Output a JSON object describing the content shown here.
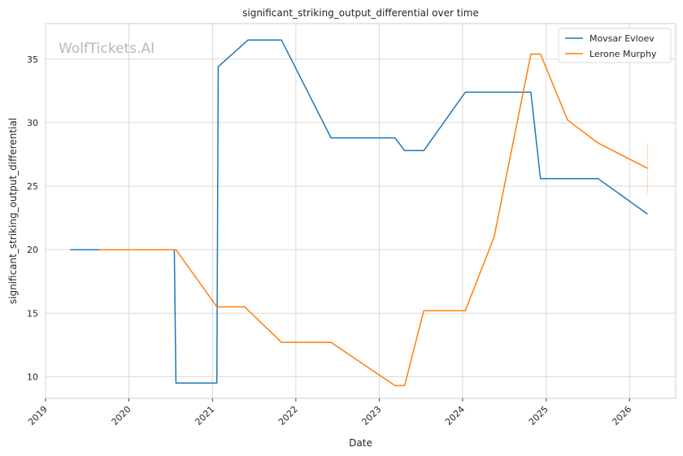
{
  "chart_data": {
    "type": "line",
    "title": "significant_striking_output_differential over time",
    "xlabel": "Date",
    "ylabel": "significant_striking_output_differential",
    "watermark": "WolfTickets.AI",
    "x_tick_labels": [
      "2019",
      "2020",
      "2021",
      "2022",
      "2023",
      "2024",
      "2025",
      "2026"
    ],
    "y_ticks": [
      10,
      15,
      20,
      25,
      30,
      35
    ],
    "xlim": [
      "2019-01-01",
      "2026-07-22"
    ],
    "ylim": [
      8.3,
      37.8
    ],
    "grid": true,
    "legend_position": "top-right",
    "series": [
      {
        "name": "Movsar Evloev",
        "color": "#1f77b4",
        "points": [
          [
            "2019-04-20",
            20.0
          ],
          [
            "2019-08-25",
            20.0
          ],
          [
            "2020-07-18",
            20.0
          ],
          [
            "2020-07-25",
            9.5
          ],
          [
            "2021-01-20",
            9.5
          ],
          [
            "2021-01-26",
            34.4
          ],
          [
            "2021-06-05",
            36.5
          ],
          [
            "2021-10-30",
            36.5
          ],
          [
            "2022-06-04",
            28.8
          ],
          [
            "2023-03-11",
            28.8
          ],
          [
            "2023-04-22",
            27.8
          ],
          [
            "2023-07-15",
            27.8
          ],
          [
            "2024-01-13",
            32.4
          ],
          [
            "2024-10-26",
            32.4
          ],
          [
            "2024-12-07",
            25.6
          ],
          [
            "2025-08-16",
            25.6
          ],
          [
            "2026-03-21",
            22.8
          ]
        ]
      },
      {
        "name": "Lerone Murphy",
        "color": "#ff7f0e",
        "points": [
          [
            "2019-08-25",
            20.0
          ],
          [
            "2020-07-25",
            20.0
          ],
          [
            "2021-01-20",
            15.5
          ],
          [
            "2021-05-22",
            15.5
          ],
          [
            "2021-10-30",
            12.7
          ],
          [
            "2022-06-04",
            12.7
          ],
          [
            "2023-03-11",
            9.3
          ],
          [
            "2023-04-22",
            9.3
          ],
          [
            "2023-07-15",
            15.2
          ],
          [
            "2024-01-13",
            15.2
          ],
          [
            "2024-05-18",
            21.0
          ],
          [
            "2024-10-26",
            35.4
          ],
          [
            "2024-12-07",
            35.4
          ],
          [
            "2025-04-05",
            30.2
          ],
          [
            "2025-08-16",
            28.4
          ],
          [
            "2026-03-21",
            26.4
          ]
        ]
      }
    ]
  }
}
